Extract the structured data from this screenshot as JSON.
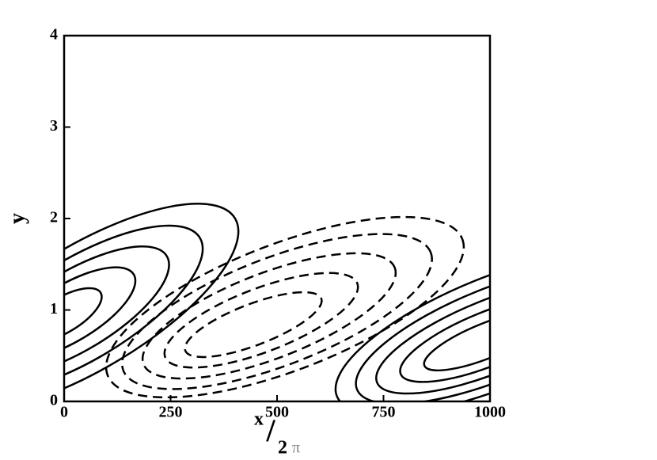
{
  "chart_data": {
    "type": "contour",
    "xlabel": [
      "x",
      "/",
      "2",
      "π"
    ],
    "ylabel": "y",
    "xlim": [
      0,
      1000
    ],
    "xticks": [
      0,
      250,
      500,
      750,
      1000
    ],
    "ylim": [
      0,
      4
    ],
    "yticks": [
      0,
      1,
      2,
      3,
      4
    ],
    "color": "#000000"
  }
}
